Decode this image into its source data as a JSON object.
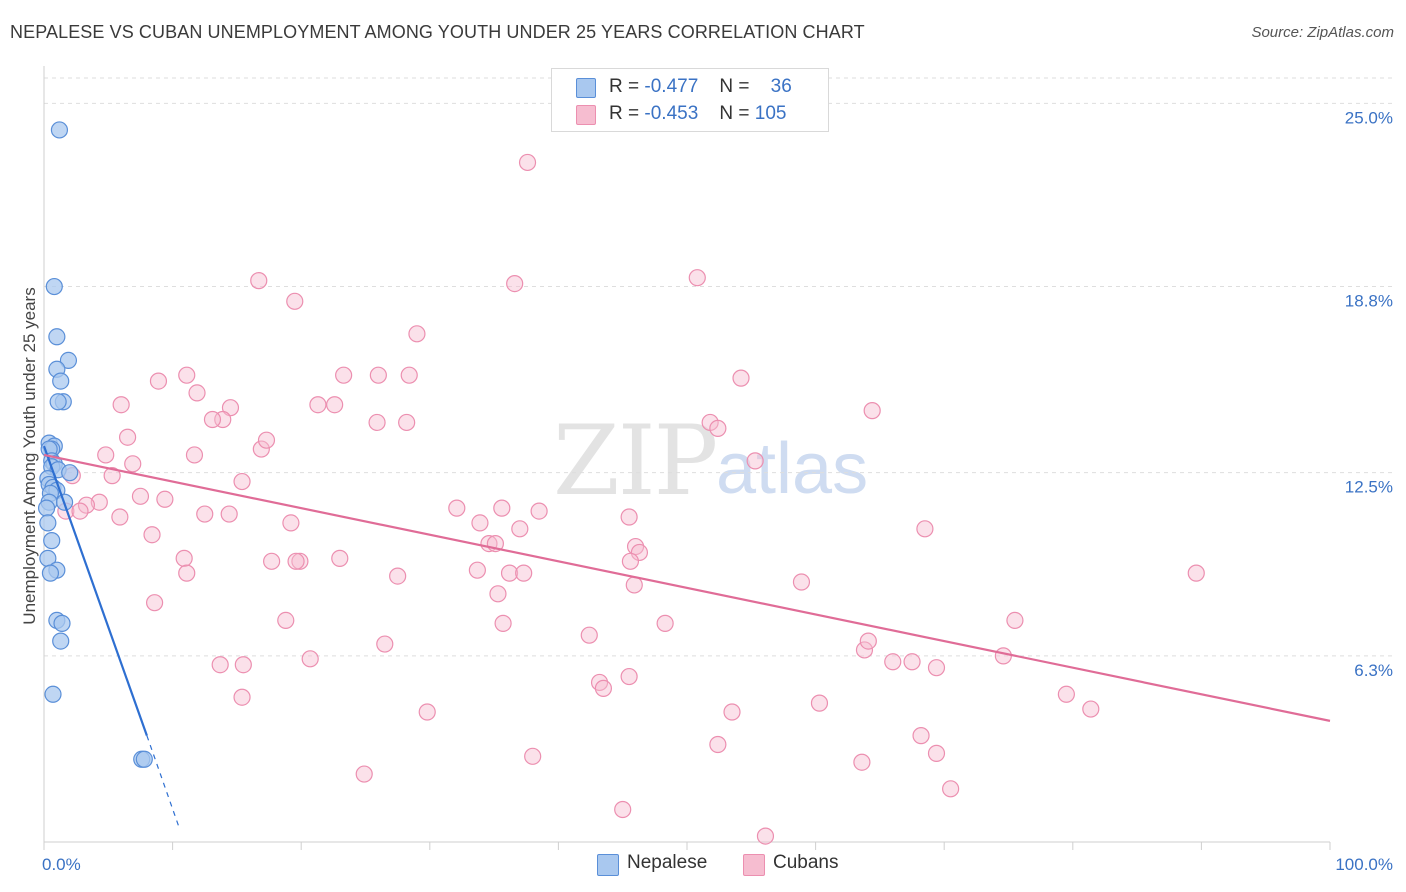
{
  "title": "NEPALESE VS CUBAN UNEMPLOYMENT AMONG YOUTH UNDER 25 YEARS CORRELATION CHART",
  "source": "Source: ZipAtlas.com",
  "watermark": {
    "zip": "ZIP",
    "atlas": "atlas"
  },
  "legend": {
    "nepalese": {
      "r_label": "R =",
      "r_value": "-0.477",
      "n_label": "N =",
      "n_value": "36"
    },
    "cubans": {
      "r_label": "R =",
      "r_value": "-0.453",
      "n_label": "N =",
      "n_value": "105"
    }
  },
  "bottom_legend": {
    "nepalese": "Nepalese",
    "cubans": "Cubans"
  },
  "colors": {
    "nepalese_fill": "#a9c8ef",
    "nepalese_stroke": "#5a8fd8",
    "nepalese_line": "#2e6fd1",
    "cubans_fill": "#f6bdd0",
    "cubans_stroke": "#ec8fb0",
    "cubans_line": "#e06c97",
    "tick_label": "#3a72c4",
    "grid": "#dedede"
  },
  "chart_data": {
    "type": "scatter",
    "title": "NEPALESE VS CUBAN UNEMPLOYMENT AMONG YOUTH UNDER 25 YEARS CORRELATION CHART",
    "xlabel": "",
    "ylabel": "Unemployment Among Youth under 25 years",
    "xlim": [
      0,
      100
    ],
    "ylim": [
      0,
      26.4
    ],
    "x_tick_labels": [
      {
        "value": 0,
        "label": "0.0%"
      },
      {
        "value": 100,
        "label": "100.0%"
      }
    ],
    "y_ticks": [
      {
        "value": 6.3,
        "label": "6.3%"
      },
      {
        "value": 12.5,
        "label": "12.5%"
      },
      {
        "value": 18.8,
        "label": "18.8%"
      },
      {
        "value": 25.0,
        "label": "25.0%"
      }
    ],
    "series": [
      {
        "name": "Nepalese",
        "points": [
          [
            1.2,
            24.1
          ],
          [
            0.8,
            18.8
          ],
          [
            1.0,
            17.1
          ],
          [
            1.9,
            16.3
          ],
          [
            1.0,
            16.0
          ],
          [
            1.3,
            15.6
          ],
          [
            1.5,
            14.9
          ],
          [
            0.4,
            13.5
          ],
          [
            0.8,
            13.4
          ],
          [
            0.6,
            13.3
          ],
          [
            0.4,
            13.3
          ],
          [
            0.6,
            12.9
          ],
          [
            0.8,
            12.8
          ],
          [
            0.6,
            12.7
          ],
          [
            1.1,
            12.6
          ],
          [
            2.0,
            12.5
          ],
          [
            0.3,
            12.3
          ],
          [
            0.4,
            12.1
          ],
          [
            0.7,
            12.0
          ],
          [
            1.0,
            11.9
          ],
          [
            0.5,
            11.8
          ],
          [
            0.4,
            11.5
          ],
          [
            1.6,
            11.5
          ],
          [
            0.2,
            11.3
          ],
          [
            0.3,
            10.8
          ],
          [
            0.6,
            10.2
          ],
          [
            0.3,
            9.6
          ],
          [
            1.0,
            9.2
          ],
          [
            0.5,
            9.1
          ],
          [
            1.0,
            7.5
          ],
          [
            1.4,
            7.4
          ],
          [
            1.3,
            6.8
          ],
          [
            0.7,
            5.0
          ],
          [
            7.6,
            2.8
          ],
          [
            7.8,
            2.8
          ],
          [
            1.1,
            14.9
          ]
        ]
      },
      {
        "name": "Cubans",
        "points": [
          [
            37.6,
            23.0
          ],
          [
            16.7,
            19.0
          ],
          [
            36.6,
            18.9
          ],
          [
            50.8,
            19.1
          ],
          [
            19.5,
            18.3
          ],
          [
            29.0,
            17.2
          ],
          [
            11.1,
            15.8
          ],
          [
            8.9,
            15.6
          ],
          [
            23.3,
            15.8
          ],
          [
            26.0,
            15.8
          ],
          [
            28.4,
            15.8
          ],
          [
            54.2,
            15.7
          ],
          [
            11.9,
            15.2
          ],
          [
            6.0,
            14.8
          ],
          [
            14.5,
            14.7
          ],
          [
            21.3,
            14.8
          ],
          [
            13.9,
            14.3
          ],
          [
            13.1,
            14.3
          ],
          [
            25.9,
            14.2
          ],
          [
            28.2,
            14.2
          ],
          [
            51.8,
            14.2
          ],
          [
            52.4,
            14.0
          ],
          [
            64.4,
            14.6
          ],
          [
            6.5,
            13.7
          ],
          [
            16.9,
            13.3
          ],
          [
            17.3,
            13.6
          ],
          [
            4.8,
            13.1
          ],
          [
            11.7,
            13.1
          ],
          [
            6.9,
            12.8
          ],
          [
            55.3,
            12.9
          ],
          [
            5.3,
            12.4
          ],
          [
            15.4,
            12.2
          ],
          [
            2.2,
            12.4
          ],
          [
            7.5,
            11.7
          ],
          [
            9.4,
            11.6
          ],
          [
            4.3,
            11.5
          ],
          [
            3.3,
            11.4
          ],
          [
            1.7,
            11.2
          ],
          [
            2.8,
            11.2
          ],
          [
            12.5,
            11.1
          ],
          [
            14.4,
            11.1
          ],
          [
            5.9,
            11.0
          ],
          [
            19.2,
            10.8
          ],
          [
            32.1,
            11.3
          ],
          [
            35.6,
            11.3
          ],
          [
            38.5,
            11.2
          ],
          [
            8.4,
            10.4
          ],
          [
            33.9,
            10.8
          ],
          [
            37.0,
            10.6
          ],
          [
            45.5,
            11.0
          ],
          [
            68.5,
            10.6
          ],
          [
            10.9,
            9.6
          ],
          [
            17.7,
            9.5
          ],
          [
            19.9,
            9.5
          ],
          [
            23.0,
            9.6
          ],
          [
            34.6,
            10.1
          ],
          [
            35.1,
            10.1
          ],
          [
            46.0,
            10.0
          ],
          [
            46.3,
            9.8
          ],
          [
            45.6,
            9.5
          ],
          [
            11.1,
            9.1
          ],
          [
            27.5,
            9.0
          ],
          [
            33.7,
            9.2
          ],
          [
            36.2,
            9.1
          ],
          [
            37.3,
            9.1
          ],
          [
            35.3,
            8.4
          ],
          [
            45.9,
            8.7
          ],
          [
            58.9,
            8.8
          ],
          [
            8.6,
            8.1
          ],
          [
            18.8,
            7.5
          ],
          [
            35.7,
            7.4
          ],
          [
            48.3,
            7.4
          ],
          [
            75.5,
            7.5
          ],
          [
            42.4,
            7.0
          ],
          [
            63.8,
            6.5
          ],
          [
            64.1,
            6.8
          ],
          [
            26.5,
            6.7
          ],
          [
            20.7,
            6.2
          ],
          [
            13.7,
            6.0
          ],
          [
            15.5,
            6.0
          ],
          [
            66.0,
            6.1
          ],
          [
            67.5,
            6.1
          ],
          [
            69.4,
            5.9
          ],
          [
            74.6,
            6.3
          ],
          [
            43.2,
            5.4
          ],
          [
            43.5,
            5.2
          ],
          [
            45.5,
            5.6
          ],
          [
            15.4,
            4.9
          ],
          [
            29.8,
            4.4
          ],
          [
            53.5,
            4.4
          ],
          [
            60.3,
            4.7
          ],
          [
            79.5,
            5.0
          ],
          [
            81.4,
            4.5
          ],
          [
            68.2,
            3.6
          ],
          [
            52.4,
            3.3
          ],
          [
            69.4,
            3.0
          ],
          [
            38.0,
            2.9
          ],
          [
            63.6,
            2.7
          ],
          [
            24.9,
            2.3
          ],
          [
            70.5,
            1.8
          ],
          [
            45.0,
            1.1
          ],
          [
            56.1,
            0.2
          ],
          [
            89.6,
            9.1
          ],
          [
            19.6,
            9.5
          ],
          [
            22.6,
            14.8
          ]
        ]
      }
    ],
    "trendlines": [
      {
        "series": "Nepalese",
        "from": [
          0,
          13.4
        ],
        "to": [
          8.0,
          3.6
        ],
        "extended_dashed_to": [
          10.5,
          0.5
        ]
      },
      {
        "series": "Cubans",
        "from": [
          0,
          13.1
        ],
        "to": [
          100,
          4.1
        ]
      }
    ]
  }
}
